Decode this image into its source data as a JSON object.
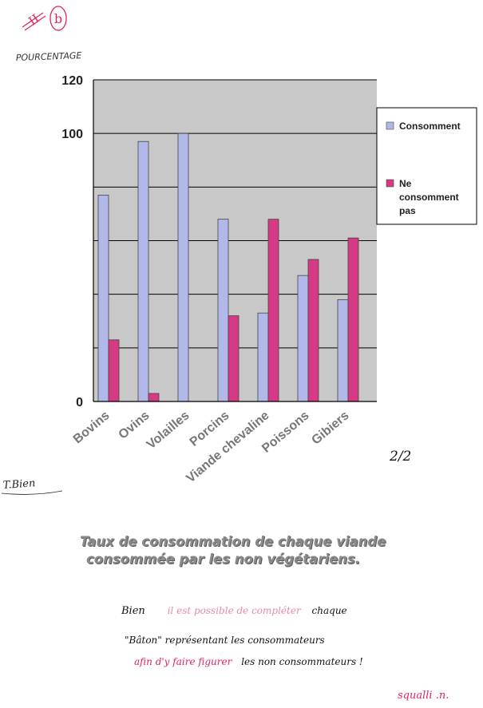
{
  "annotations": {
    "corner_mark": "II",
    "corner_circle": "b",
    "y_axis_title": "POURCENTAGE",
    "page_number": "2/2",
    "grade_left": "T.Bien",
    "note_line1_black_a": "Bien",
    "note_line1_red": "il est possible de compléter",
    "note_line1_black_b": "chaque",
    "note_line2": "\"Bâton\" représentant les consommateurs",
    "note_line3_red": "afin d'y faire figurer",
    "note_line3_black": "les non consommateurs !",
    "signature": "squalli .n."
  },
  "caption": {
    "line1": "Taux de consommation de chaque viande",
    "line2": "consommée par les non végétariens."
  },
  "colors": {
    "plot_bg": "#c8c8c8",
    "consomment": "#b3b8ea",
    "ne_consomment_pas": "#d63a86",
    "red_ink": "#e0245e",
    "pink_ink": "#e88aa6"
  },
  "chart_data": {
    "type": "bar",
    "categories": [
      "Bovins",
      "Ovins",
      "Volailles",
      "Porcins",
      "Viande chevaline",
      "Poissons",
      "Gibiers"
    ],
    "series": [
      {
        "name": "Consomment",
        "values": [
          77,
          97,
          100,
          68,
          33,
          47,
          38
        ]
      },
      {
        "name": "Ne consomment pas",
        "values": [
          23,
          3,
          0,
          32,
          68,
          53,
          61
        ]
      }
    ],
    "ylim": [
      0,
      120
    ],
    "ytick_labels": [
      "0",
      "100",
      "120"
    ],
    "gridlines": [
      20,
      40,
      60,
      80,
      100,
      120
    ],
    "legend": {
      "position": "right",
      "entries": [
        {
          "lines": [
            "Consomment"
          ]
        },
        {
          "lines": [
            "Ne",
            "consomment",
            "pas"
          ]
        }
      ]
    }
  }
}
